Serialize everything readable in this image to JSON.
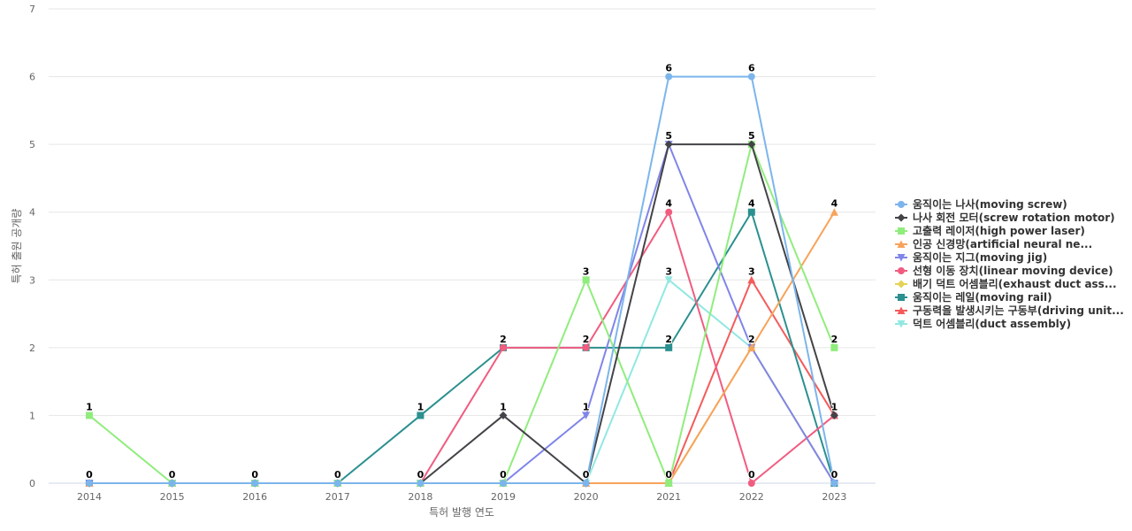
{
  "chart_data": {
    "type": "line",
    "title": "",
    "xlabel": "특허 발행 연도",
    "ylabel": "특허 출원 공개량",
    "ylim": [
      0,
      7
    ],
    "yticks": [
      0,
      1,
      2,
      3,
      4,
      5,
      6,
      7
    ],
    "grid": true,
    "legend_position": "right",
    "categories": [
      "2014",
      "2015",
      "2016",
      "2017",
      "2018",
      "2019",
      "2020",
      "2021",
      "2022",
      "2023"
    ],
    "series": [
      {
        "name": "움직이는 나사(moving screw)",
        "color": "#7cb5ec",
        "marker": "circle",
        "values": [
          0,
          0,
          0,
          0,
          0,
          0,
          0,
          6,
          6,
          0
        ]
      },
      {
        "name": "나사 회전 모터(screw rotation motor)",
        "color": "#434348",
        "marker": "diamond",
        "values": [
          0,
          0,
          0,
          0,
          0,
          1,
          0,
          5,
          5,
          1
        ]
      },
      {
        "name": "고출력 레이저(high power laser)",
        "color": "#90ed7d",
        "marker": "square",
        "values": [
          1,
          0,
          0,
          0,
          0,
          0,
          3,
          0,
          5,
          2
        ]
      },
      {
        "name": "인공 신경망(artificial neural ne...",
        "color": "#f7a35c",
        "marker": "triangle",
        "values": [
          0,
          0,
          0,
          0,
          0,
          0,
          0,
          0,
          2,
          4
        ]
      },
      {
        "name": "움직이는 지그(moving jig)",
        "color": "#8085e9",
        "marker": "triangle-down",
        "values": [
          0,
          0,
          0,
          0,
          0,
          0,
          1,
          5,
          2,
          0
        ]
      },
      {
        "name": "선형 이동 장치(linear moving device)",
        "color": "#f15c80",
        "marker": "circle",
        "values": [
          0,
          0,
          0,
          0,
          0,
          2,
          2,
          4,
          0,
          1
        ]
      },
      {
        "name": "배기 덕트 어셈블리(exhaust duct ass...",
        "color": "#e4d354",
        "marker": "diamond",
        "values": [
          0,
          0,
          0,
          0,
          0,
          0,
          0,
          0,
          2,
          0
        ]
      },
      {
        "name": "움직이는 레일(moving rail)",
        "color": "#2b908f",
        "marker": "square",
        "values": [
          0,
          0,
          0,
          0,
          1,
          2,
          2,
          2,
          4,
          0
        ]
      },
      {
        "name": "구동력을 발생시키는 구동부(driving unit...",
        "color": "#f45b5b",
        "marker": "triangle",
        "values": [
          0,
          0,
          0,
          0,
          0,
          0,
          0,
          0,
          3,
          1
        ]
      },
      {
        "name": "덕트 어셈블리(duct assembly)",
        "color": "#91e8e1",
        "marker": "triangle-down",
        "values": [
          0,
          0,
          0,
          0,
          0,
          0,
          0,
          3,
          2,
          0
        ]
      }
    ],
    "data_labels": [
      {
        "category": "2014",
        "values": [
          1,
          0
        ]
      },
      {
        "category": "2015",
        "values": [
          0
        ]
      },
      {
        "category": "2016",
        "values": [
          0
        ]
      },
      {
        "category": "2017",
        "values": [
          0
        ]
      },
      {
        "category": "2018",
        "values": [
          1,
          0
        ]
      },
      {
        "category": "2019",
        "values": [
          2,
          1,
          0
        ]
      },
      {
        "category": "2020",
        "values": [
          3,
          2,
          1,
          0
        ]
      },
      {
        "category": "2021",
        "values": [
          6,
          5,
          4,
          3,
          2,
          0
        ]
      },
      {
        "category": "2022",
        "values": [
          6,
          5,
          4,
          3,
          2,
          0
        ]
      },
      {
        "category": "2023",
        "values": [
          4,
          2,
          1,
          0
        ]
      }
    ]
  }
}
